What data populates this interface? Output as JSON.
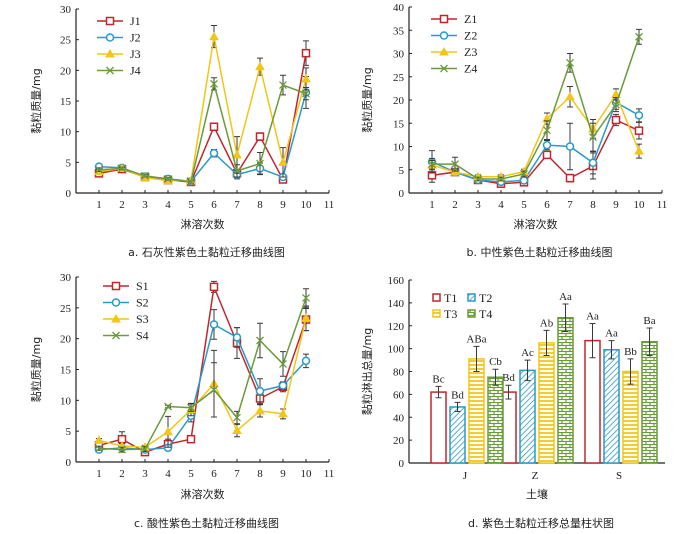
{
  "colors": {
    "series1": "#c0272d",
    "series2": "#2a9ac8",
    "series3": "#f2c51a",
    "series4": "#6a9a3a",
    "axis": "#222222",
    "errorbar": "#3a3a3a"
  },
  "chart_data": [
    {
      "id": "a",
      "type": "line",
      "caption": "a. 石灰性紫色土黏粒迁移曲线图",
      "xlabel": "淋溶次数",
      "ylabel": "黏粒质量/mg",
      "xlim": [
        0,
        11
      ],
      "ylim": [
        0,
        30
      ],
      "x_ticks": [
        1,
        2,
        3,
        4,
        5,
        6,
        7,
        8,
        9,
        10,
        11
      ],
      "y_ticks": [
        0,
        5,
        10,
        15,
        20,
        25,
        30
      ],
      "legend_position": "top-left",
      "x": [
        1,
        2,
        3,
        4,
        5,
        6,
        7,
        8,
        9,
        10
      ],
      "series": [
        {
          "name": "J1",
          "marker": "square",
          "values": [
            3.2,
            3.9,
            2.6,
            2.1,
            1.8,
            10.8,
            3.2,
            9.2,
            2.2,
            22.8
          ],
          "errors": [
            0.3,
            0.2,
            0.2,
            0.2,
            0.2,
            0.5,
            0.6,
            0.6,
            0.3,
            2.0
          ]
        },
        {
          "name": "J2",
          "marker": "circle",
          "values": [
            4.3,
            4.1,
            2.7,
            2.3,
            1.9,
            6.5,
            3.0,
            4.0,
            2.6,
            16.4
          ],
          "errors": [
            0.3,
            0.2,
            0.2,
            0.2,
            0.2,
            0.6,
            0.7,
            0.9,
            0.4,
            2.6
          ]
        },
        {
          "name": "J3",
          "marker": "triangle",
          "values": [
            3.5,
            4.0,
            2.5,
            2.0,
            2.0,
            25.5,
            6.2,
            20.6,
            5.0,
            18.6
          ],
          "errors": [
            0.3,
            0.2,
            0.2,
            0.2,
            0.2,
            1.8,
            3.0,
            1.4,
            2.4,
            1.8
          ]
        },
        {
          "name": "J4",
          "marker": "x",
          "values": [
            3.8,
            4.0,
            2.8,
            2.3,
            1.8,
            17.8,
            3.6,
            4.8,
            17.6,
            16.2
          ],
          "errors": [
            0.3,
            0.2,
            0.2,
            0.2,
            0.2,
            1.0,
            1.0,
            1.8,
            1.6,
            1.0
          ]
        }
      ]
    },
    {
      "id": "b",
      "type": "line",
      "caption": "b. 中性紫色土黏粒迁移曲线图",
      "xlabel": "淋溶次数",
      "ylabel": "黏粒质量/mg",
      "xlim": [
        0,
        11
      ],
      "ylim": [
        0,
        40
      ],
      "x_ticks": [
        1,
        2,
        3,
        4,
        5,
        6,
        7,
        8,
        9,
        10,
        11
      ],
      "y_ticks": [
        0,
        5,
        10,
        15,
        20,
        25,
        30,
        35,
        40
      ],
      "legend_position": "top-left",
      "x": [
        1,
        2,
        3,
        4,
        5,
        6,
        7,
        8,
        9,
        10
      ],
      "series": [
        {
          "name": "Z1",
          "marker": "square",
          "values": [
            3.8,
            4.5,
            2.8,
            2.0,
            2.3,
            8.2,
            3.2,
            5.8,
            15.7,
            13.4
          ],
          "errors": [
            1.5,
            0.5,
            0.4,
            0.3,
            0.3,
            0.8,
            0.8,
            2.8,
            1.2,
            1.8
          ]
        },
        {
          "name": "Z2",
          "marker": "circle",
          "values": [
            6.7,
            4.5,
            2.8,
            2.4,
            2.7,
            10.3,
            10.0,
            6.5,
            19.5,
            16.7
          ],
          "errors": [
            2.4,
            0.6,
            0.5,
            0.4,
            0.4,
            1.0,
            5.0,
            2.4,
            1.5,
            1.4
          ]
        },
        {
          "name": "Z3",
          "marker": "triangle",
          "values": [
            6.0,
            4.5,
            3.5,
            3.5,
            4.6,
            16.0,
            20.7,
            13.8,
            21.2,
            9.0
          ],
          "errors": [
            1.0,
            0.5,
            0.4,
            0.4,
            0.5,
            1.2,
            2.2,
            2.0,
            1.2,
            1.5
          ]
        },
        {
          "name": "Z4",
          "marker": "x",
          "values": [
            6.2,
            6.2,
            3.0,
            3.0,
            4.1,
            13.5,
            28.0,
            12.0,
            19.0,
            33.6
          ],
          "errors": [
            1.2,
            1.5,
            0.4,
            0.4,
            0.6,
            2.0,
            2.0,
            3.0,
            1.5,
            1.6
          ]
        }
      ]
    },
    {
      "id": "c",
      "type": "line",
      "caption": "c. 酸性紫色土黏粒迁移曲线图",
      "xlabel": "淋溶次数",
      "ylabel": "黏粒质量/mg",
      "xlim": [
        0,
        11
      ],
      "ylim": [
        0,
        30
      ],
      "x_ticks": [
        1,
        2,
        3,
        4,
        5,
        6,
        7,
        8,
        9,
        10,
        11
      ],
      "y_ticks": [
        0,
        5,
        10,
        15,
        20,
        25,
        30
      ],
      "legend_position": "top-left",
      "x": [
        1,
        2,
        3,
        4,
        5,
        6,
        7,
        8,
        9,
        10
      ],
      "series": [
        {
          "name": "S1",
          "marker": "square",
          "values": [
            2.7,
            3.7,
            1.6,
            2.9,
            3.7,
            28.4,
            19.3,
            10.3,
            12.2,
            23.1
          ],
          "errors": [
            0.4,
            1.2,
            0.3,
            0.8,
            0.3,
            0.9,
            2.5,
            1.0,
            0.8,
            1.8
          ]
        },
        {
          "name": "S2",
          "marker": "circle",
          "values": [
            2.0,
            2.3,
            2.0,
            2.3,
            7.5,
            22.3,
            20.2,
            11.5,
            12.4,
            16.4
          ],
          "errors": [
            0.3,
            0.4,
            0.3,
            0.4,
            1.0,
            2.4,
            1.6,
            2.0,
            0.6,
            1.1
          ]
        },
        {
          "name": "S3",
          "marker": "triangle",
          "values": [
            3.5,
            2.6,
            2.4,
            4.9,
            8.5,
            12.7,
            5.1,
            8.3,
            7.8,
            23.3
          ],
          "errors": [
            0.3,
            0.4,
            0.3,
            2.5,
            1.0,
            5.4,
            1.0,
            1.0,
            0.8,
            2.0
          ]
        },
        {
          "name": "S4",
          "marker": "x",
          "values": [
            2.2,
            2.0,
            2.1,
            9.0,
            8.8,
            11.7,
            7.2,
            19.7,
            15.9,
            26.6
          ],
          "errors": [
            0.3,
            0.4,
            0.4,
            0.2,
            0.6,
            4.4,
            1.0,
            2.8,
            2.0,
            1.5
          ]
        }
      ]
    },
    {
      "id": "d",
      "type": "bar",
      "caption": "d. 紫色土黏粒迁移总量柱状图",
      "xlabel": "土壤",
      "ylabel": "黏粒淋出总量/mg",
      "ylim": [
        0,
        160
      ],
      "y_ticks": [
        0,
        20,
        40,
        60,
        80,
        100,
        120,
        140,
        160
      ],
      "categories": [
        "J",
        "Z",
        "S"
      ],
      "legend_position": "top-left",
      "series": [
        {
          "name": "T1",
          "pattern": "hollow",
          "values": [
            62,
            62,
            107
          ],
          "errors": [
            5,
            6,
            15
          ],
          "labels": [
            "Bc",
            "Bd",
            "Aa"
          ]
        },
        {
          "name": "T2",
          "pattern": "diagonal",
          "values": [
            49,
            81,
            99
          ],
          "errors": [
            4,
            9,
            8
          ],
          "labels": [
            "Bd",
            "Ac",
            "Aa"
          ]
        },
        {
          "name": "T3",
          "pattern": "horizontal",
          "values": [
            91,
            105,
            80
          ],
          "errors": [
            11,
            11,
            11
          ],
          "labels": [
            "ABa",
            "Ab",
            "Bb"
          ]
        },
        {
          "name": "T4",
          "pattern": "brick",
          "values": [
            75,
            127,
            106
          ],
          "errors": [
            7,
            12,
            12
          ],
          "labels": [
            "Cb",
            "Aa",
            "Ba"
          ]
        }
      ]
    }
  ]
}
